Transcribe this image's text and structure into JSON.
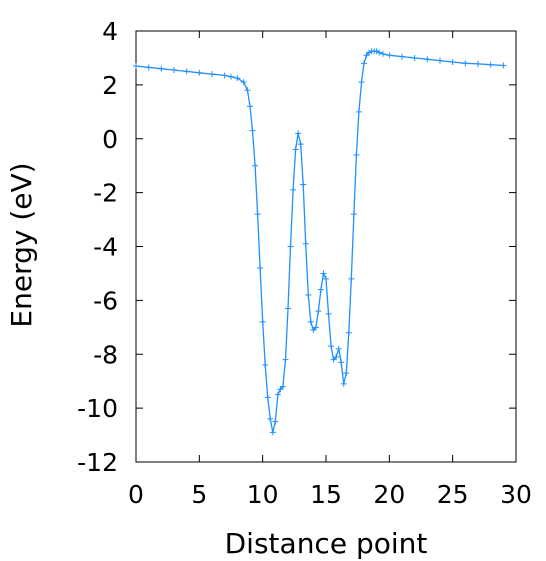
{
  "chart_data": {
    "type": "line",
    "title": "",
    "xlabel": "Distance point",
    "ylabel": "Energy (eV)",
    "xlim": [
      0,
      30
    ],
    "ylim": [
      -12,
      4
    ],
    "xticks": [
      0,
      5,
      10,
      15,
      20,
      25,
      30
    ],
    "yticks": [
      -12,
      -10,
      -8,
      -6,
      -4,
      -2,
      0,
      2,
      4
    ],
    "grid": false,
    "series": [
      {
        "color": "#1e90ff",
        "marker": "+",
        "x": [
          0,
          1,
          2,
          3,
          4,
          5,
          6,
          7,
          7.5,
          8,
          8.5,
          8.8,
          9.0,
          9.2,
          9.4,
          9.6,
          9.8,
          10.0,
          10.2,
          10.4,
          10.6,
          10.8,
          11.0,
          11.2,
          11.4,
          11.6,
          11.8,
          12.0,
          12.2,
          12.4,
          12.6,
          12.8,
          13.0,
          13.2,
          13.4,
          13.6,
          13.8,
          14.0,
          14.2,
          14.4,
          14.6,
          14.8,
          15.0,
          15.2,
          15.4,
          15.6,
          15.8,
          16.0,
          16.2,
          16.4,
          16.6,
          16.8,
          17.0,
          17.2,
          17.4,
          17.6,
          17.8,
          18.0,
          18.2,
          18.4,
          18.6,
          18.8,
          19.0,
          19.2,
          19.5,
          20,
          21,
          22,
          23,
          24,
          25,
          26,
          27,
          28,
          29
        ],
        "y": [
          2.7,
          2.65,
          2.6,
          2.55,
          2.5,
          2.45,
          2.4,
          2.35,
          2.3,
          2.25,
          2.1,
          1.8,
          1.2,
          0.3,
          -1.0,
          -2.8,
          -4.8,
          -6.8,
          -8.4,
          -9.6,
          -10.4,
          -10.9,
          -10.5,
          -9.5,
          -9.3,
          -9.2,
          -8.2,
          -6.3,
          -4.0,
          -1.9,
          -0.4,
          0.2,
          -0.2,
          -1.7,
          -3.9,
          -5.8,
          -6.8,
          -7.1,
          -7.0,
          -6.4,
          -5.6,
          -5.0,
          -5.2,
          -6.5,
          -7.7,
          -8.2,
          -8.1,
          -7.8,
          -8.3,
          -9.1,
          -8.7,
          -7.2,
          -5.2,
          -2.8,
          -0.6,
          1.0,
          2.1,
          2.8,
          3.1,
          3.2,
          3.25,
          3.25,
          3.25,
          3.2,
          3.15,
          3.1,
          3.05,
          3.0,
          2.95,
          2.9,
          2.85,
          2.8,
          2.78,
          2.75,
          2.72
        ]
      }
    ]
  }
}
